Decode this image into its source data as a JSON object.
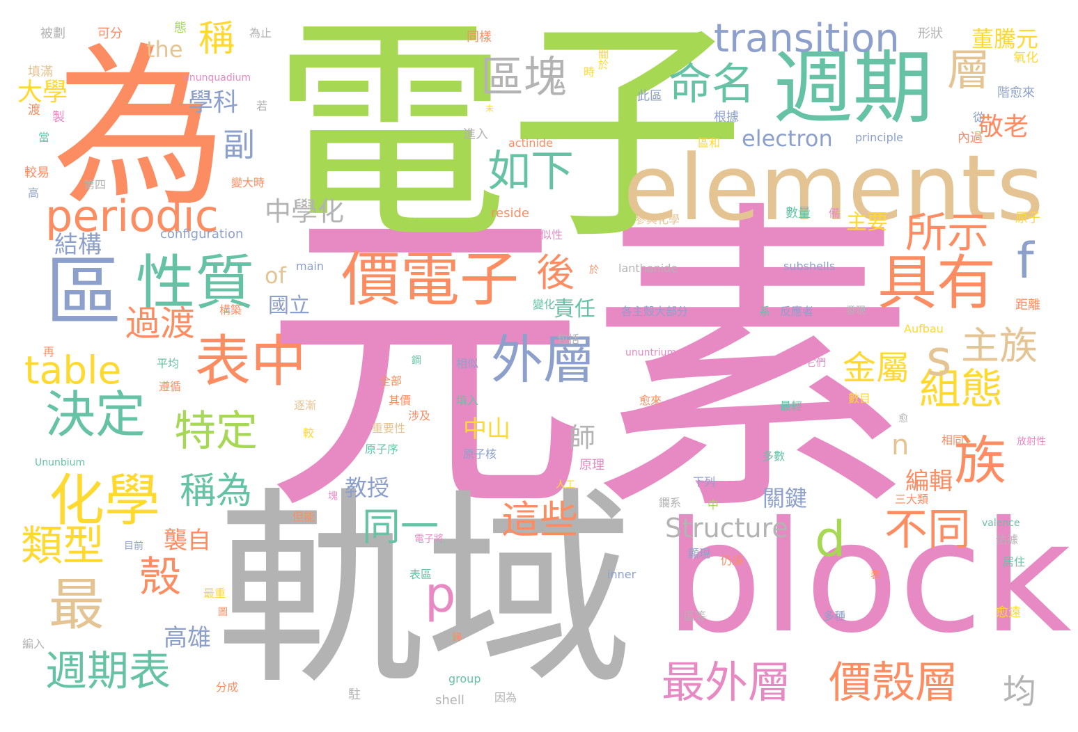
{
  "colors": {
    "pink": "#e78ac3",
    "green": "#a6d854",
    "orange": "#fc8d62",
    "teal": "#66c2a5",
    "blue": "#8da0cb",
    "gray": "#b3b3b3",
    "tan": "#e5c494",
    "yellow": "#ffd92f"
  },
  "words": [
    {
      "text": "元素",
      "color": "pink"
    },
    {
      "text": "電子",
      "color": "green"
    },
    {
      "text": "軌域",
      "color": "gray"
    },
    {
      "text": "block",
      "color": "pink"
    },
    {
      "text": "為",
      "color": "orange"
    },
    {
      "text": "elements",
      "color": "tan"
    },
    {
      "text": "週期",
      "color": "teal"
    },
    {
      "text": "區",
      "color": "blue"
    },
    {
      "text": "價電子",
      "color": "orange"
    },
    {
      "text": "性質",
      "color": "teal"
    },
    {
      "text": "具有",
      "color": "orange"
    },
    {
      "text": "periodic",
      "color": "orange"
    },
    {
      "text": "化學",
      "color": "yellow"
    },
    {
      "text": "最",
      "color": "tan"
    },
    {
      "text": "表中",
      "color": "orange"
    },
    {
      "text": "外層",
      "color": "blue"
    },
    {
      "text": "族",
      "color": "orange"
    },
    {
      "text": "決定",
      "color": "teal"
    },
    {
      "text": "transition",
      "color": "blue"
    },
    {
      "text": "區塊",
      "color": "gray"
    },
    {
      "text": "命名",
      "color": "teal"
    },
    {
      "text": "如下",
      "color": "teal"
    },
    {
      "text": "層",
      "color": "tan"
    },
    {
      "text": "所示",
      "color": "orange"
    },
    {
      "text": "組態",
      "color": "yellow"
    },
    {
      "text": "週期表",
      "color": "teal"
    },
    {
      "text": "類型",
      "color": "yellow"
    },
    {
      "text": "殼",
      "color": "orange"
    },
    {
      "text": "最外層",
      "color": "pink"
    },
    {
      "text": "價殼層",
      "color": "orange"
    },
    {
      "text": "不同",
      "color": "orange"
    },
    {
      "text": "d",
      "color": "green"
    },
    {
      "text": "p",
      "color": "pink"
    },
    {
      "text": "s",
      "color": "tan"
    },
    {
      "text": "f",
      "color": "blue"
    },
    {
      "text": "n",
      "color": "tan"
    },
    {
      "text": "主族",
      "color": "tan"
    },
    {
      "text": "金屬",
      "color": "yellow"
    },
    {
      "text": "table",
      "color": "yellow"
    },
    {
      "text": "特定",
      "color": "green"
    },
    {
      "text": "過渡",
      "color": "orange"
    },
    {
      "text": "後",
      "color": "orange"
    },
    {
      "text": "同一",
      "color": "teal"
    },
    {
      "text": "這些",
      "color": "orange"
    },
    {
      "text": "稱為",
      "color": "teal"
    },
    {
      "text": "稱",
      "color": "yellow"
    },
    {
      "text": "副",
      "color": "blue"
    },
    {
      "text": "Structure",
      "color": "gray"
    },
    {
      "text": "electron",
      "color": "blue"
    },
    {
      "text": "董騰元",
      "color": "yellow"
    },
    {
      "text": "敬老",
      "color": "orange"
    },
    {
      "text": "學科",
      "color": "blue"
    },
    {
      "text": "the",
      "color": "tan"
    },
    {
      "text": "大學",
      "color": "yellow"
    },
    {
      "text": "中學化",
      "color": "gray"
    },
    {
      "text": "結構",
      "color": "blue"
    },
    {
      "text": "of",
      "color": "tan"
    },
    {
      "text": "國立",
      "color": "blue"
    },
    {
      "text": "責任",
      "color": "teal"
    },
    {
      "text": "主要",
      "color": "yellow"
    },
    {
      "text": "教授",
      "color": "blue"
    },
    {
      "text": "中山",
      "color": "yellow"
    },
    {
      "text": "師",
      "color": "gray"
    },
    {
      "text": "編輯",
      "color": "orange"
    },
    {
      "text": "關鍵",
      "color": "blue"
    },
    {
      "text": "襲自",
      "color": "orange"
    },
    {
      "text": "高雄",
      "color": "blue"
    },
    {
      "text": "均",
      "color": "gray"
    },
    {
      "text": "被劃",
      "color": "gray"
    },
    {
      "text": "可分",
      "color": "orange"
    },
    {
      "text": "態",
      "color": "green"
    },
    {
      "text": "為止",
      "color": "gray"
    },
    {
      "text": "同樣",
      "color": "orange"
    },
    {
      "text": "關於",
      "color": "yellow"
    },
    {
      "text": "形狀",
      "color": "gray"
    },
    {
      "text": "氧化",
      "color": "yellow"
    },
    {
      "text": "填滿",
      "color": "tan"
    },
    {
      "text": "ununquadium",
      "color": "pink"
    },
    {
      "text": "若",
      "color": "gray"
    },
    {
      "text": "時",
      "color": "yellow"
    },
    {
      "text": "此區",
      "color": "blue"
    },
    {
      "text": "根據",
      "color": "blue"
    },
    {
      "text": "階愈來",
      "color": "blue"
    },
    {
      "text": "渡",
      "color": "orange"
    },
    {
      "text": "製",
      "color": "pink"
    },
    {
      "text": "未",
      "color": "yellow"
    },
    {
      "text": "進入",
      "color": "gray"
    },
    {
      "text": "從",
      "color": "blue"
    },
    {
      "text": "當",
      "color": "teal"
    },
    {
      "text": "actinide",
      "color": "orange"
    },
    {
      "text": "區和",
      "color": "yellow"
    },
    {
      "text": "principle",
      "color": "blue"
    },
    {
      "text": "內過",
      "color": "orange"
    },
    {
      "text": "較易",
      "color": "orange"
    },
    {
      "text": "第四",
      "color": "gray"
    },
    {
      "text": "變大時",
      "color": "orange"
    },
    {
      "text": "高",
      "color": "blue"
    },
    {
      "text": "configuration",
      "color": "blue"
    },
    {
      "text": "reside",
      "color": "orange"
    },
    {
      "text": "參與化學",
      "color": "tan"
    },
    {
      "text": "數量",
      "color": "teal"
    },
    {
      "text": "備",
      "color": "pink"
    },
    {
      "text": "原子",
      "color": "yellow"
    },
    {
      "text": "相似性",
      "color": "pink"
    },
    {
      "text": "main",
      "color": "blue"
    },
    {
      "text": "於",
      "color": "orange"
    },
    {
      "text": "lanthanide",
      "color": "gray"
    },
    {
      "text": "subshells",
      "color": "blue"
    },
    {
      "text": "變化",
      "color": "teal"
    },
    {
      "text": "各主殼大部分",
      "color": "blue"
    },
    {
      "text": "系",
      "color": "teal"
    },
    {
      "text": "反應者",
      "color": "blue"
    },
    {
      "text": "發現",
      "color": "gray"
    },
    {
      "text": "距離",
      "color": "orange"
    },
    {
      "text": "構築",
      "color": "orange"
    },
    {
      "text": "包括",
      "color": "gray"
    },
    {
      "text": "Aufbau",
      "color": "yellow"
    },
    {
      "text": "再",
      "color": "orange"
    },
    {
      "text": "平均",
      "color": "teal"
    },
    {
      "text": "ununtrium",
      "color": "pink"
    },
    {
      "text": "鋼",
      "color": "teal"
    },
    {
      "text": "相似",
      "color": "blue"
    },
    {
      "text": "它們",
      "color": "pink"
    },
    {
      "text": "遵循",
      "color": "orange"
    },
    {
      "text": "全部",
      "color": "orange"
    },
    {
      "text": "其價",
      "color": "orange"
    },
    {
      "text": "填入",
      "color": "teal"
    },
    {
      "text": "愈來",
      "color": "orange"
    },
    {
      "text": "最輕",
      "color": "teal"
    },
    {
      "text": "數目",
      "color": "yellow"
    },
    {
      "text": "逐漸",
      "color": "tan"
    },
    {
      "text": "涉及",
      "color": "orange"
    },
    {
      "text": "重要性",
      "color": "tan"
    },
    {
      "text": "愈",
      "color": "gray"
    },
    {
      "text": "較",
      "color": "yellow"
    },
    {
      "text": "原子序",
      "color": "teal"
    },
    {
      "text": "原子核",
      "color": "blue"
    },
    {
      "text": "原理",
      "color": "pink"
    },
    {
      "text": "相同",
      "color": "orange"
    },
    {
      "text": "放射性",
      "color": "pink"
    },
    {
      "text": "Ununbium",
      "color": "teal"
    },
    {
      "text": "多數",
      "color": "teal"
    },
    {
      "text": "人工",
      "color": "yellow"
    },
    {
      "text": "下列",
      "color": "blue"
    },
    {
      "text": "塊",
      "color": "pink"
    },
    {
      "text": "鑭系",
      "color": "gray"
    },
    {
      "text": "中",
      "color": "green"
    },
    {
      "text": "三大類",
      "color": "orange"
    },
    {
      "text": "但能",
      "color": "orange"
    },
    {
      "text": "valence",
      "color": "teal"
    },
    {
      "text": "目前",
      "color": "blue"
    },
    {
      "text": "電子將",
      "color": "pink"
    },
    {
      "text": "顯現",
      "color": "blue"
    },
    {
      "text": "仍須",
      "color": "orange"
    },
    {
      "text": "估據",
      "color": "gray"
    },
    {
      "text": "居住",
      "color": "teal"
    },
    {
      "text": "表區",
      "color": "teal"
    },
    {
      "text": "inner",
      "color": "blue"
    },
    {
      "text": "表",
      "color": "orange"
    },
    {
      "text": "最重",
      "color": "yellow"
    },
    {
      "text": "圖",
      "color": "orange"
    },
    {
      "text": "區等",
      "color": "gray"
    },
    {
      "text": "多種",
      "color": "blue"
    },
    {
      "text": "愈遠",
      "color": "yellow"
    },
    {
      "text": "編入",
      "color": "gray"
    },
    {
      "text": "歸",
      "color": "orange"
    },
    {
      "text": "group",
      "color": "teal"
    },
    {
      "text": "分成",
      "color": "orange"
    },
    {
      "text": "駐",
      "color": "gray"
    },
    {
      "text": "shell",
      "color": "gray"
    },
    {
      "text": "因為",
      "color": "gray"
    }
  ]
}
